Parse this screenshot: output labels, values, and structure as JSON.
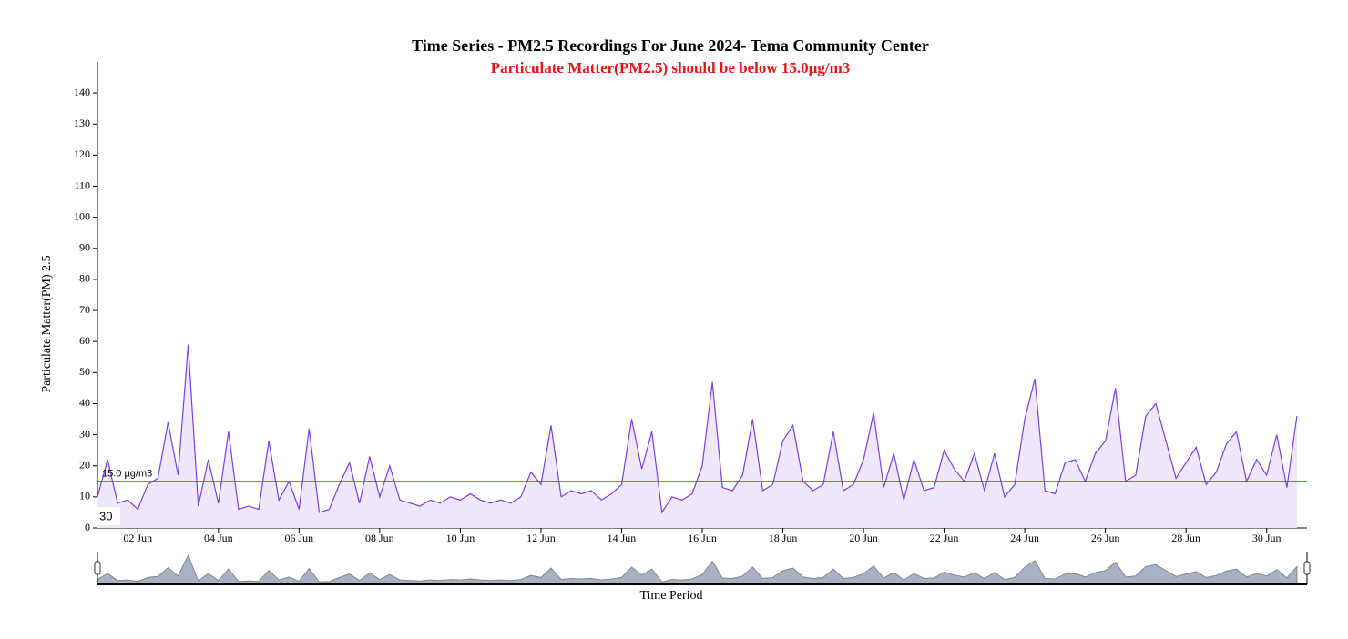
{
  "chart_data": {
    "type": "area",
    "title": "Time Series - PM2.5 Recordings For June 2024- Tema Community Center",
    "subtitle": "Particulate Matter(PM2.5) should be below 15.0µg/m3",
    "y_label": "Particulate Matter(PM) 2.5",
    "x_label": "Time Period",
    "annotations": [
      "30"
    ],
    "color": "#7b3fe4",
    "fill": "#efe8fc",
    "navigator_color": "#a9b2c3",
    "threshold": {
      "value": 15,
      "label": "15.0 µg/m3",
      "color": "#e8141c"
    },
    "ylim": [
      0,
      150
    ],
    "yticks": [
      0,
      10,
      20,
      30,
      40,
      50,
      60,
      70,
      80,
      90,
      100,
      110,
      120,
      130,
      140
    ],
    "xlim": [
      "2024-06-01 00:00",
      "2024-07-01 00:00"
    ],
    "xticks": [
      {
        "value": "2024-06-02 00:00",
        "label": "02 Jun"
      },
      {
        "value": "2024-06-04 00:00",
        "label": "04 Jun"
      },
      {
        "value": "2024-06-06 00:00",
        "label": "06 Jun"
      },
      {
        "value": "2024-06-08 00:00",
        "label": "08 Jun"
      },
      {
        "value": "2024-06-10 00:00",
        "label": "10 Jun"
      },
      {
        "value": "2024-06-12 00:00",
        "label": "12 Jun"
      },
      {
        "value": "2024-06-14 00:00",
        "label": "14 Jun"
      },
      {
        "value": "2024-06-16 00:00",
        "label": "16 Jun"
      },
      {
        "value": "2024-06-18 00:00",
        "label": "18 Jun"
      },
      {
        "value": "2024-06-20 00:00",
        "label": "20 Jun"
      },
      {
        "value": "2024-06-22 00:00",
        "label": "22 Jun"
      },
      {
        "value": "2024-06-24 00:00",
        "label": "24 Jun"
      },
      {
        "value": "2024-06-26 00:00",
        "label": "26 Jun"
      },
      {
        "value": "2024-06-28 00:00",
        "label": "28 Jun"
      },
      {
        "value": "2024-06-30 00:00",
        "label": "30 Jun"
      }
    ],
    "x": [
      "2024-06-01 00:00",
      "2024-06-01 06:00",
      "2024-06-01 12:00",
      "2024-06-01 18:00",
      "2024-06-02 00:00",
      "2024-06-02 06:00",
      "2024-06-02 12:00",
      "2024-06-02 18:00",
      "2024-06-03 00:00",
      "2024-06-03 06:00",
      "2024-06-03 12:00",
      "2024-06-03 18:00",
      "2024-06-04 00:00",
      "2024-06-04 06:00",
      "2024-06-04 12:00",
      "2024-06-04 18:00",
      "2024-06-05 00:00",
      "2024-06-05 06:00",
      "2024-06-05 12:00",
      "2024-06-05 18:00",
      "2024-06-06 00:00",
      "2024-06-06 06:00",
      "2024-06-06 12:00",
      "2024-06-06 18:00",
      "2024-06-07 00:00",
      "2024-06-07 06:00",
      "2024-06-07 12:00",
      "2024-06-07 18:00",
      "2024-06-08 00:00",
      "2024-06-08 06:00",
      "2024-06-08 12:00",
      "2024-06-08 18:00",
      "2024-06-09 00:00",
      "2024-06-09 06:00",
      "2024-06-09 12:00",
      "2024-06-09 18:00",
      "2024-06-10 00:00",
      "2024-06-10 06:00",
      "2024-06-10 12:00",
      "2024-06-10 18:00",
      "2024-06-11 00:00",
      "2024-06-11 06:00",
      "2024-06-11 12:00",
      "2024-06-11 18:00",
      "2024-06-12 00:00",
      "2024-06-12 06:00",
      "2024-06-12 12:00",
      "2024-06-12 18:00",
      "2024-06-13 00:00",
      "2024-06-13 06:00",
      "2024-06-13 12:00",
      "2024-06-13 18:00",
      "2024-06-14 00:00",
      "2024-06-14 06:00",
      "2024-06-14 12:00",
      "2024-06-14 18:00",
      "2024-06-15 00:00",
      "2024-06-15 06:00",
      "2024-06-15 12:00",
      "2024-06-15 18:00",
      "2024-06-16 00:00",
      "2024-06-16 06:00",
      "2024-06-16 12:00",
      "2024-06-16 18:00",
      "2024-06-17 00:00",
      "2024-06-17 06:00",
      "2024-06-17 12:00",
      "2024-06-17 18:00",
      "2024-06-18 00:00",
      "2024-06-18 06:00",
      "2024-06-18 12:00",
      "2024-06-18 18:00",
      "2024-06-19 00:00",
      "2024-06-19 06:00",
      "2024-06-19 12:00",
      "2024-06-19 18:00",
      "2024-06-20 00:00",
      "2024-06-20 06:00",
      "2024-06-20 12:00",
      "2024-06-20 18:00",
      "2024-06-21 00:00",
      "2024-06-21 06:00",
      "2024-06-21 12:00",
      "2024-06-21 18:00",
      "2024-06-22 00:00",
      "2024-06-22 06:00",
      "2024-06-22 12:00",
      "2024-06-22 18:00",
      "2024-06-23 00:00",
      "2024-06-23 06:00",
      "2024-06-23 12:00",
      "2024-06-23 18:00",
      "2024-06-24 00:00",
      "2024-06-24 06:00",
      "2024-06-24 12:00",
      "2024-06-24 18:00",
      "2024-06-25 00:00",
      "2024-06-25 06:00",
      "2024-06-25 12:00",
      "2024-06-25 18:00",
      "2024-06-26 00:00",
      "2024-06-26 06:00",
      "2024-06-26 12:00",
      "2024-06-26 18:00",
      "2024-06-27 00:00",
      "2024-06-27 06:00",
      "2024-06-27 12:00",
      "2024-06-27 18:00",
      "2024-06-28 00:00",
      "2024-06-28 06:00",
      "2024-06-28 12:00",
      "2024-06-28 18:00",
      "2024-06-29 00:00",
      "2024-06-29 06:00",
      "2024-06-29 12:00",
      "2024-06-29 18:00",
      "2024-06-30 00:00",
      "2024-06-30 06:00",
      "2024-06-30 12:00",
      "2024-06-30 18:00"
    ],
    "values": [
      10,
      22,
      8,
      9,
      6,
      14,
      16,
      34,
      17,
      59,
      7,
      22,
      8,
      31,
      6,
      7,
      6,
      28,
      9,
      15,
      6,
      32,
      5,
      6,
      14,
      21,
      8,
      23,
      10,
      20,
      9,
      8,
      7,
      9,
      8,
      10,
      9,
      11,
      9,
      8,
      9,
      8,
      10,
      18,
      14,
      33,
      10,
      12,
      11,
      12,
      9,
      11,
      14,
      35,
      19,
      31,
      5,
      10,
      9,
      11,
      20,
      47,
      13,
      12,
      17,
      35,
      12,
      14,
      28,
      33,
      15,
      12,
      14,
      31,
      12,
      14,
      22,
      37,
      13,
      24,
      9,
      22,
      12,
      13,
      25,
      19,
      15,
      24,
      12,
      24,
      10,
      14,
      35,
      48,
      12,
      11,
      21,
      22,
      15,
      24,
      28,
      45,
      15,
      17,
      36,
      40,
      28,
      16,
      21,
      26,
      14,
      18,
      27,
      31,
      15,
      22,
      17,
      30,
      13,
      36
    ]
  }
}
